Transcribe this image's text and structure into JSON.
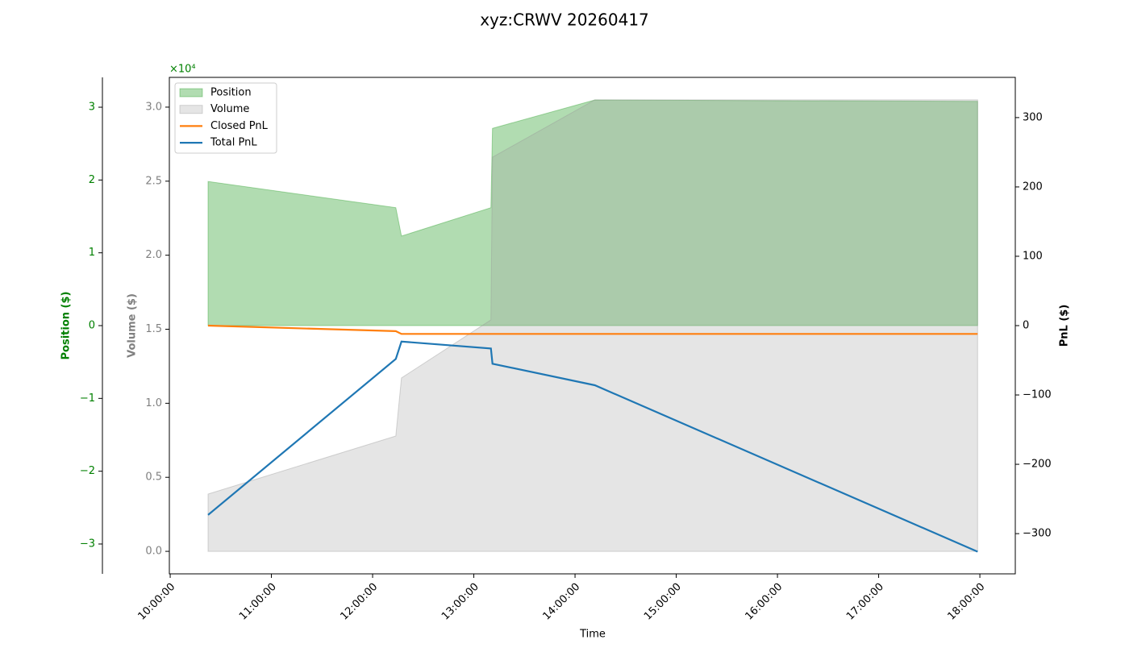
{
  "chart_data": {
    "type": "line",
    "title": "xyz:CRWV 20260417",
    "xlabel": "Time",
    "x": [
      "10:22:27",
      "12:13:45",
      "12:17:06",
      "13:10:08",
      "13:11:04",
      "14:11:45",
      "17:58:40"
    ],
    "xlim": [
      "09:59:30",
      "18:21:00"
    ],
    "xticks": [
      "10:00:00",
      "11:00:00",
      "12:00:00",
      "13:00:00",
      "14:00:00",
      "15:00:00",
      "16:00:00",
      "17:00:00",
      "18:00:00"
    ],
    "ylabel": "Position ($)",
    "ycolor": "green",
    "ylim": [
      -3.41,
      3.41
    ],
    "yticks": [
      {
        "value": -3,
        "label": "−3"
      },
      {
        "value": -2,
        "label": "−2"
      },
      {
        "value": -1,
        "label": "−1"
      },
      0,
      1,
      2,
      3
    ],
    "y2label": "Volume ($)",
    "y2color": "gray",
    "y2lim": [
      -1520,
      32010
    ],
    "y2ticks": [
      {
        "value": 0,
        "label": "0.0"
      },
      {
        "value": 5000,
        "label": "0.5"
      },
      {
        "value": 10000,
        "label": "1.0"
      },
      {
        "value": 15000,
        "label": "1.5"
      },
      {
        "value": 20000,
        "label": "2.0"
      },
      {
        "value": 25000,
        "label": "2.5"
      },
      {
        "value": 30000,
        "label": "3.0"
      }
    ],
    "y2offset": "×10⁴",
    "y3label": "PnL ($)",
    "y3color": "black",
    "y3lim": [
      -358,
      358
    ],
    "y3ticks": [
      {
        "value": -300,
        "label": "−300"
      },
      {
        "value": -200,
        "label": "−200"
      },
      {
        "value": -100,
        "label": "−100"
      },
      0,
      100,
      200,
      300
    ],
    "legend": "upper left",
    "series": [
      {
        "name": "Position",
        "kind": "area",
        "axis": "y",
        "color": "#2ca02c",
        "values": [
          1.98,
          1.62,
          1.23,
          1.62,
          2.71,
          3.1,
          3.08
        ]
      },
      {
        "name": "Volume",
        "kind": "area",
        "axis": "y2",
        "color": "#999999",
        "values": [
          3870,
          7790,
          11710,
          15630,
          26620,
          30490,
          30490
        ]
      },
      {
        "name": "Closed PnL",
        "kind": "line",
        "axis": "y3",
        "color": "#ff7f0e",
        "values": [
          0,
          -8,
          -12,
          -12,
          -12,
          -12,
          -12
        ]
      },
      {
        "name": "Total PnL",
        "kind": "line",
        "axis": "y3",
        "color": "#1f77b4",
        "values": [
          -273,
          -48,
          -23,
          -33,
          -55,
          -86,
          -326
        ]
      }
    ]
  }
}
